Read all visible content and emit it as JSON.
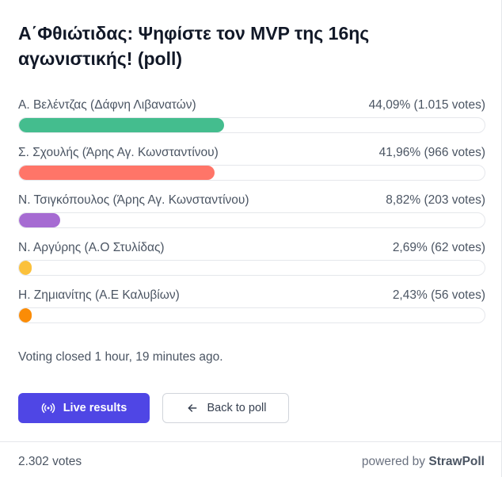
{
  "poll": {
    "title": "Α΄Φθιώτιδας: Ψηφίστε τον MVP της 16ης αγωνιστικής! (poll)",
    "options": [
      {
        "label": "Α. Βελέντζας (Δάφνη Λιβανατών)",
        "value_text": "44,09% (1.015 votes)",
        "percent": 44.09,
        "color": "#44bd8e"
      },
      {
        "label": "Σ. Σχουλής (Άρης Αγ. Κωνσταντίνου)",
        "value_text": "41,96% (966 votes)",
        "percent": 41.96,
        "color": "#ff7568"
      },
      {
        "label": "Ν. Τσιγκόπουλος (Άρης Αγ. Κωνσταντίνου)",
        "value_text": "8,82% (203 votes)",
        "percent": 8.82,
        "color": "#a66bd2"
      },
      {
        "label": "Ν. Αργύρης (Α.Ο Στυλίδας)",
        "value_text": "2,69% (62 votes)",
        "percent": 2.69,
        "color": "#fbc13c"
      },
      {
        "label": "Η. Ζημιανίτης (Α.Ε Καλυβίων)",
        "value_text": "2,43% (56 votes)",
        "percent": 2.43,
        "color": "#fb8c06"
      }
    ],
    "status_text": "Voting closed 1 hour, 19 minutes ago."
  },
  "buttons": {
    "live_results_label": "Live results",
    "live_results_icon": "broadcast-icon",
    "back_to_poll_label": "Back to poll",
    "back_to_poll_icon": "arrow-left-icon"
  },
  "footer": {
    "total_votes": "2.302 votes",
    "powered_prefix": "powered by",
    "brand": "StrawPoll"
  }
}
